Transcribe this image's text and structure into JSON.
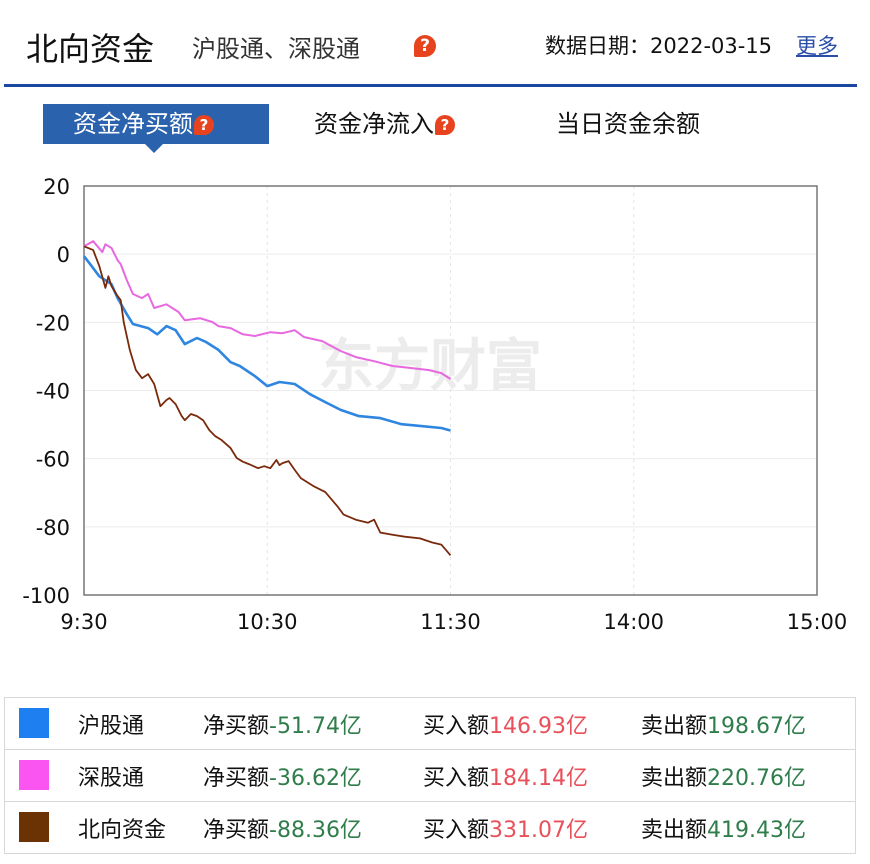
{
  "header": {
    "title": "北向资金",
    "subtitle": "沪股通、深股通",
    "help_glyph": "?",
    "date_label": "数据日期：2022-03-15",
    "more_link": "更多"
  },
  "tabs": [
    {
      "label": "资金净买额",
      "active": true,
      "has_help": true
    },
    {
      "label": "资金净流入",
      "active": false,
      "has_help": true
    },
    {
      "label": "当日资金余额",
      "active": false,
      "has_help": false
    }
  ],
  "colors": {
    "accent": "#2b62ad",
    "rule": "#1a47a0",
    "sh": "#2f86e0",
    "sz": "#e868e0",
    "north": "#7a2a0c",
    "positive": "#e8505a",
    "negative": "#2e7d4a"
  },
  "watermark": "东方财富",
  "legend": [
    {
      "name": "沪股通",
      "color": "#1e80f0",
      "net_label": "净买额",
      "net_value": "-51.74亿",
      "buy_label": "买入额",
      "buy_value": "146.93亿",
      "sell_label": "卖出额",
      "sell_value": "198.67亿"
    },
    {
      "name": "深股通",
      "color": "#fa55f0",
      "net_label": "净买额",
      "net_value": "-36.62亿",
      "buy_label": "买入额",
      "buy_value": "184.14亿",
      "sell_label": "卖出额",
      "sell_value": "220.76亿"
    },
    {
      "name": "北向资金",
      "color": "#6b3304",
      "net_label": "净买额",
      "net_value": "-88.36亿",
      "buy_label": "买入额",
      "buy_value": "331.07亿",
      "sell_label": "卖出额",
      "sell_value": "419.43亿"
    }
  ],
  "chart_data": {
    "type": "line",
    "title": "资金净买额",
    "xlabel": "",
    "ylabel": "",
    "ylim": [
      -100,
      20
    ],
    "yticks": [
      20,
      0,
      -20,
      -40,
      -60,
      -80,
      -100
    ],
    "xticks": [
      "9:30",
      "10:30",
      "11:30",
      "14:00",
      "15:00"
    ],
    "x_unit": "minutes since 9:30 (trading time, 240 total)",
    "grid": true,
    "legend_position": "bottom",
    "series": [
      {
        "name": "沪股通",
        "color": "#2f86e0",
        "x": [
          0,
          2,
          5,
          9,
          11,
          14,
          16,
          21,
          24,
          27,
          30,
          33,
          37,
          40,
          44,
          48,
          51,
          56,
          60,
          64,
          69,
          74,
          79,
          84,
          90,
          97,
          104,
          110,
          117,
          120
        ],
        "y": [
          -0.6,
          -2.9,
          -6.5,
          -8.8,
          -12.9,
          -17.6,
          -20.5,
          -21.7,
          -23.5,
          -21.1,
          -22.3,
          -26.4,
          -24.6,
          -25.8,
          -28.1,
          -31.7,
          -32.8,
          -35.8,
          -38.7,
          -37.5,
          -38.1,
          -41.1,
          -43.4,
          -45.7,
          -47.5,
          -48.1,
          -49.9,
          -50.4,
          -51.0,
          -51.74
        ]
      },
      {
        "name": "深股通",
        "color": "#e868e0",
        "x": [
          0,
          3,
          6,
          7,
          9,
          11,
          12,
          14,
          16,
          19,
          21,
          23,
          27,
          31,
          33,
          38,
          42,
          44,
          48,
          52,
          56,
          61,
          65,
          69,
          72,
          78,
          84,
          89,
          95,
          101,
          107,
          113,
          117,
          120
        ],
        "y": [
          2.3,
          3.8,
          0.6,
          2.9,
          1.8,
          -1.8,
          -2.9,
          -7.6,
          -11.7,
          -12.9,
          -11.7,
          -15.8,
          -14.7,
          -17.0,
          -19.4,
          -18.8,
          -19.9,
          -21.1,
          -21.7,
          -23.5,
          -24.0,
          -22.9,
          -23.2,
          -22.3,
          -24.3,
          -25.5,
          -28.4,
          -30.2,
          -31.4,
          -32.8,
          -33.4,
          -34.0,
          -34.9,
          -36.62
        ]
      },
      {
        "name": "北向资金",
        "color": "#7a2a0c",
        "x": [
          0,
          3,
          5,
          7,
          8,
          9,
          11,
          12,
          13,
          15,
          17,
          19,
          21,
          23,
          25,
          27,
          28,
          30,
          32,
          33,
          35,
          37,
          39,
          41,
          43,
          45,
          48,
          50,
          52,
          54,
          57,
          59,
          61,
          63,
          64,
          65,
          67,
          69,
          71,
          75,
          79,
          83,
          85,
          89,
          93,
          95,
          97,
          101,
          105,
          110,
          114,
          117,
          120
        ],
        "y": [
          2.3,
          1.2,
          -3.5,
          -9.9,
          -6.5,
          -9.4,
          -12.3,
          -13.5,
          -19.9,
          -28.1,
          -34.0,
          -36.4,
          -35.2,
          -38.1,
          -44.6,
          -42.8,
          -42.2,
          -44.0,
          -47.5,
          -48.7,
          -46.9,
          -47.5,
          -48.7,
          -51.6,
          -53.4,
          -54.5,
          -56.9,
          -59.8,
          -60.9,
          -61.6,
          -62.8,
          -62.2,
          -62.8,
          -60.4,
          -61.9,
          -61.3,
          -60.7,
          -63.3,
          -65.7,
          -68.0,
          -69.8,
          -74.0,
          -76.4,
          -77.9,
          -78.8,
          -77.9,
          -81.7,
          -82.3,
          -82.9,
          -83.4,
          -84.6,
          -85.2,
          -88.36
        ]
      }
    ]
  }
}
